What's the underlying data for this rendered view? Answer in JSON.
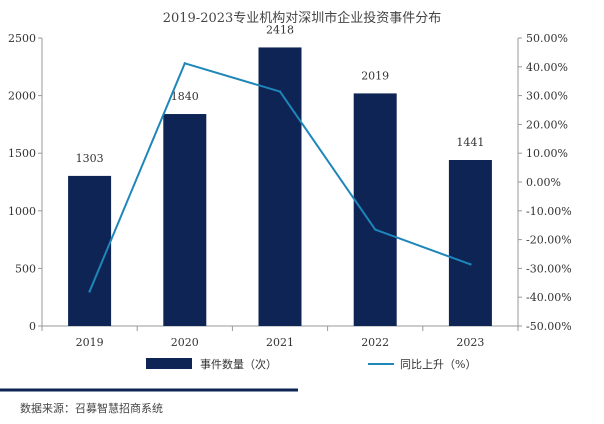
{
  "chart_data": {
    "type": "bar",
    "title": "2019-2023专业机构对深圳市企业投资事件分布",
    "categories": [
      "2019",
      "2020",
      "2021",
      "2022",
      "2023"
    ],
    "series": [
      {
        "name": "事件数量（次）",
        "type": "bar",
        "axis": "left",
        "color": "#0d2455",
        "values": [
          1303,
          1840,
          2418,
          2019,
          1441
        ],
        "labels": [
          "1303",
          "1840",
          "2418",
          "2019",
          "1441"
        ]
      },
      {
        "name": "同比上升（%）",
        "type": "line",
        "axis": "right",
        "color": "#1e86b8",
        "values": [
          -38.0,
          41.2,
          31.4,
          -16.5,
          -28.6
        ]
      }
    ],
    "y_left": {
      "min": 0,
      "max": 2500,
      "ticks": [
        "0",
        "500",
        "1000",
        "1500",
        "2000",
        "2500"
      ]
    },
    "y_right": {
      "min": -50,
      "max": 50,
      "ticks": [
        "-50.00%",
        "-40.00%",
        "-30.00%",
        "-20.00%",
        "-10.00%",
        "0.00%",
        "10.00%",
        "20.00%",
        "30.00%",
        "40.00%",
        "50.00%"
      ]
    },
    "grid": false,
    "legend_position": "bottom"
  },
  "footer": {
    "source": "数据来源：召募智慧招商系统",
    "accent_color": "#0d2455"
  }
}
